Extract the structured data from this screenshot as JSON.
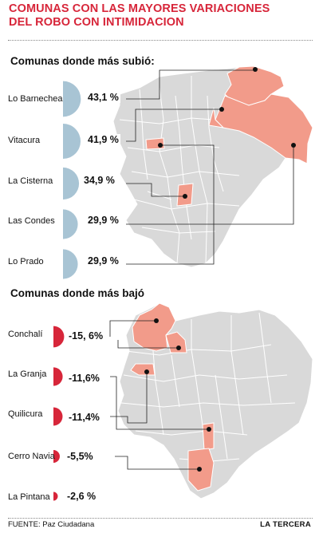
{
  "title": {
    "line1": "COMUNAS CON LAS MAYORES VARIACIONES",
    "line2": "DEL ROBO CON INTIMIDACION"
  },
  "colors": {
    "title": "#d7263a",
    "up_marker": "#a8c4d4",
    "down_marker": "#d7263a",
    "highlight": "#f29b8a",
    "map_base": "#d9d9d9",
    "map_lines": "#ffffff"
  },
  "section_up": {
    "heading": "Comunas donde más subió:",
    "items": [
      {
        "name": "Lo Barnechea",
        "value": "43,1 %",
        "fraction": 0.431
      },
      {
        "name": "Vitacura",
        "value": "41,9 %",
        "fraction": 0.419
      },
      {
        "name": "La Cisterna",
        "value": "34,9 %",
        "fraction": 0.349
      },
      {
        "name": "Las Condes",
        "value": "29,9 %",
        "fraction": 0.299
      },
      {
        "name": "Lo Prado",
        "value": "29,9 %",
        "fraction": 0.299
      }
    ]
  },
  "section_down": {
    "heading": "Comunas donde más bajó",
    "items": [
      {
        "name": "Conchalí",
        "value": "-15, 6%",
        "fraction": 0.156
      },
      {
        "name": "La Granja",
        "value": "-11,6%",
        "fraction": 0.116
      },
      {
        "name": "Quilicura",
        "value": "-11,4%",
        "fraction": 0.114
      },
      {
        "name": "Cerro Navia",
        "value": "-5,5%",
        "fraction": 0.055
      },
      {
        "name": "La Pintana",
        "value": "-2,6 %",
        "fraction": 0.026
      }
    ]
  },
  "footer": {
    "source": "FUENTE: Paz Ciudadana",
    "brand": "LA TERCERA"
  }
}
